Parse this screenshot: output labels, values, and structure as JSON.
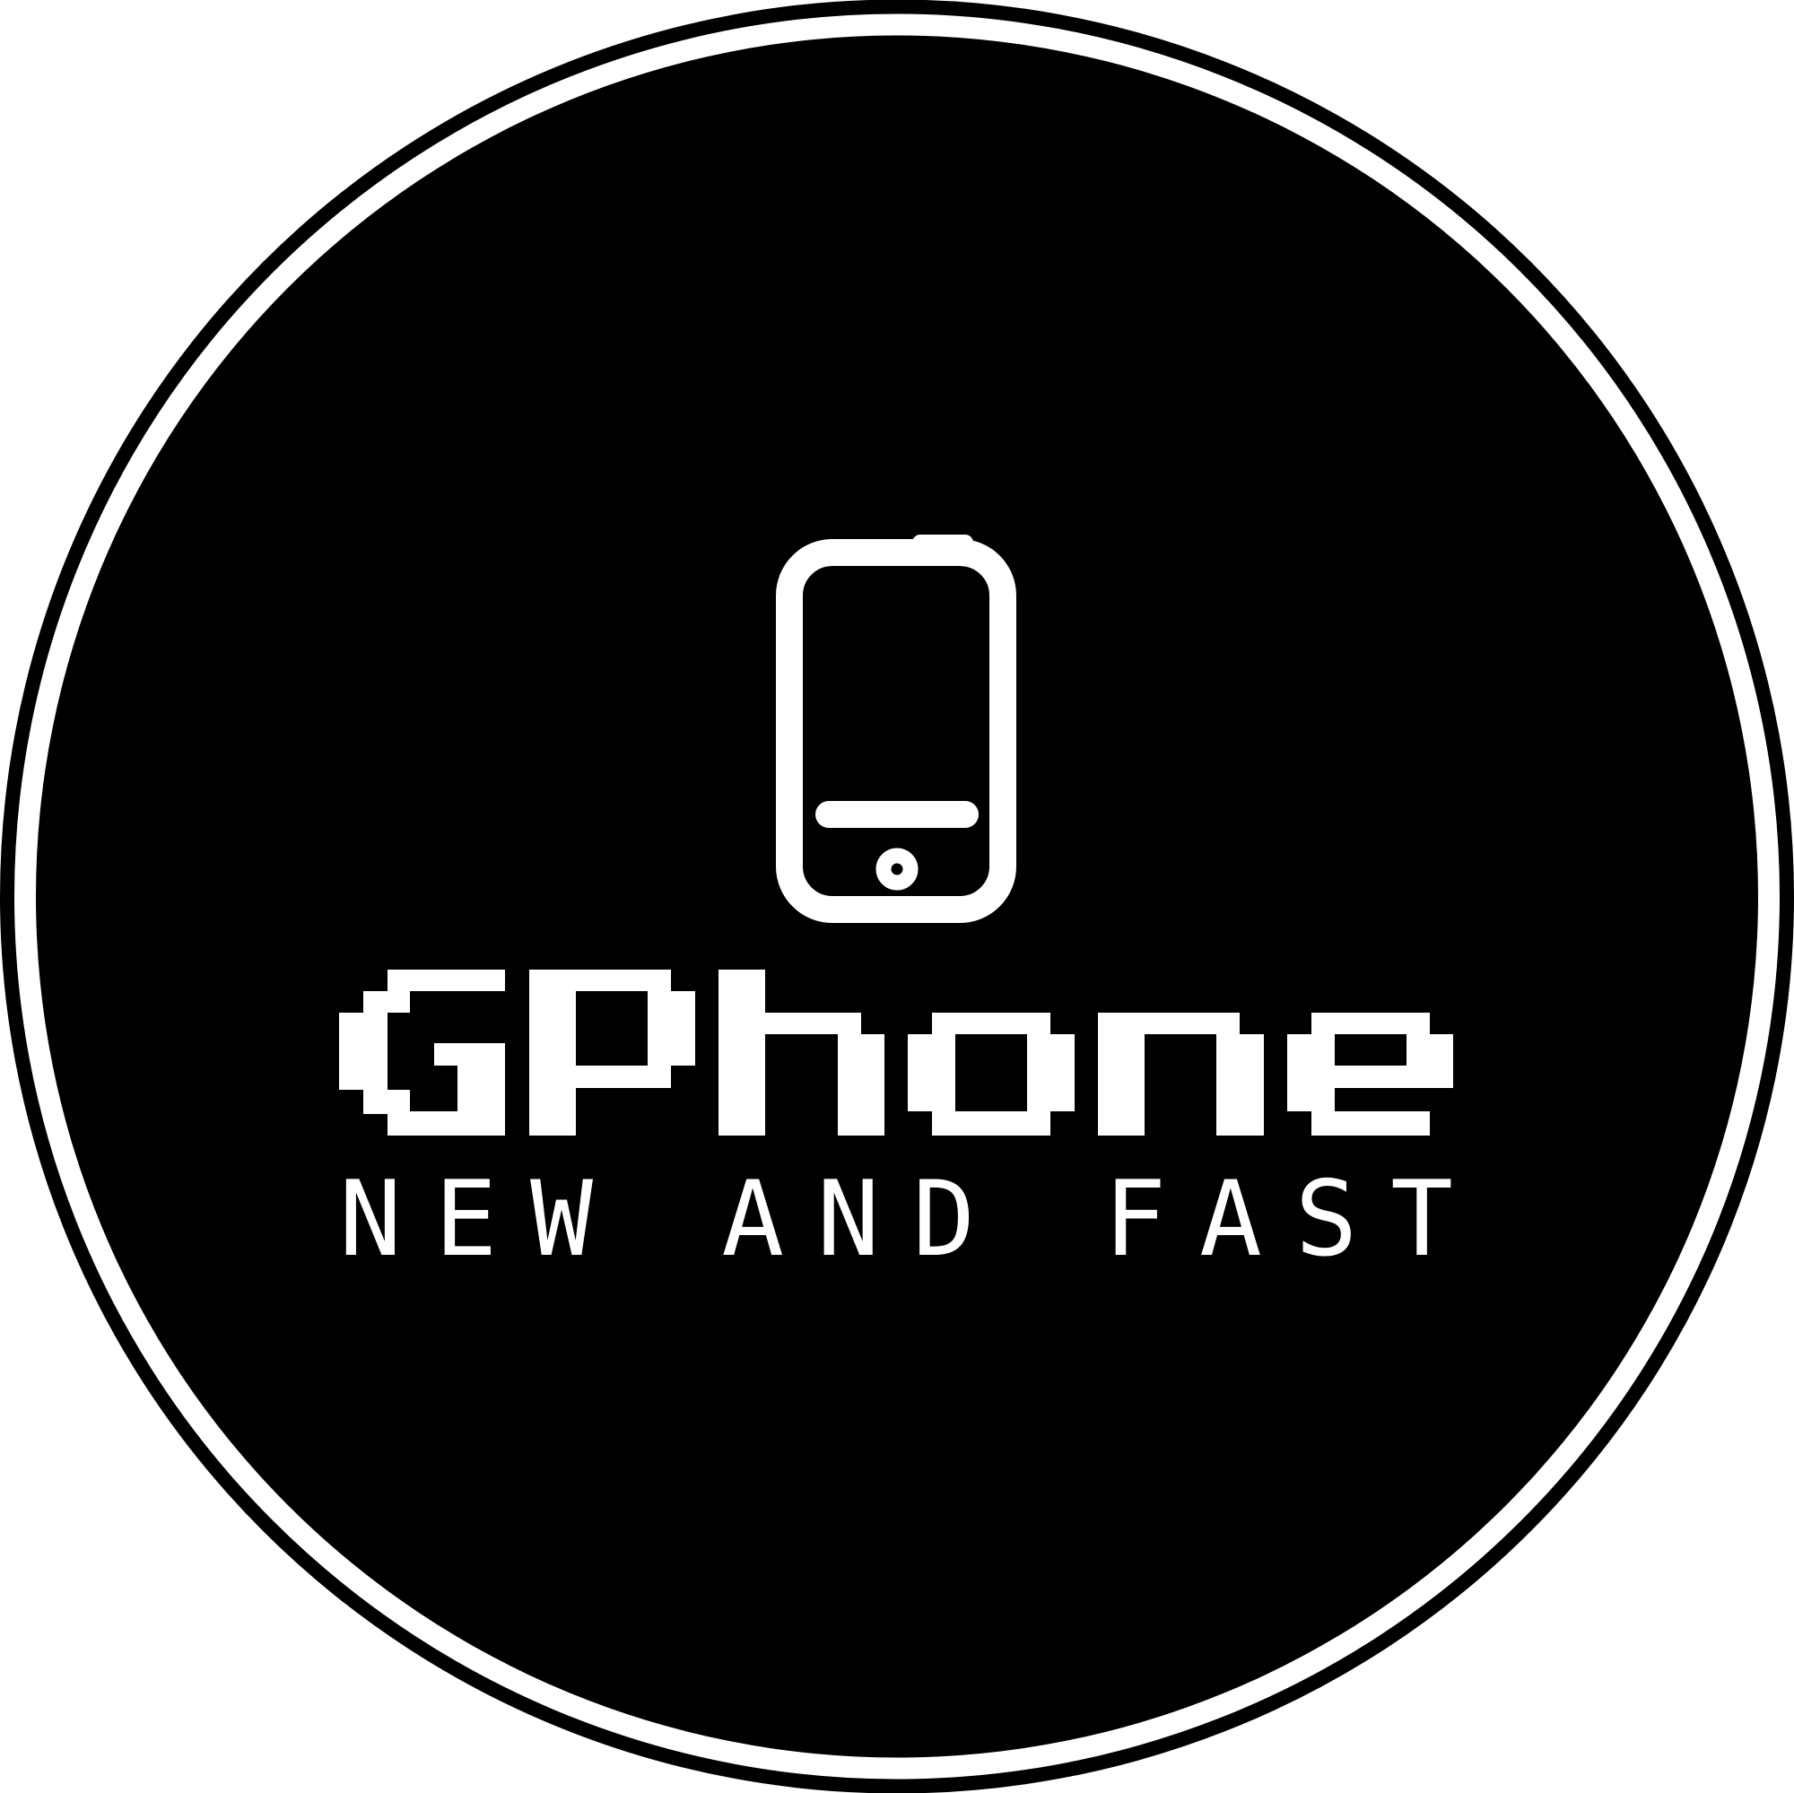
{
  "brand": {
    "name": "GPhone",
    "tagline": "NEW AND FAST"
  },
  "icons": {
    "main": "smartphone-icon"
  },
  "colors": {
    "badge_fill": "#000000",
    "foreground": "#ffffff",
    "background": "#ffffff"
  }
}
